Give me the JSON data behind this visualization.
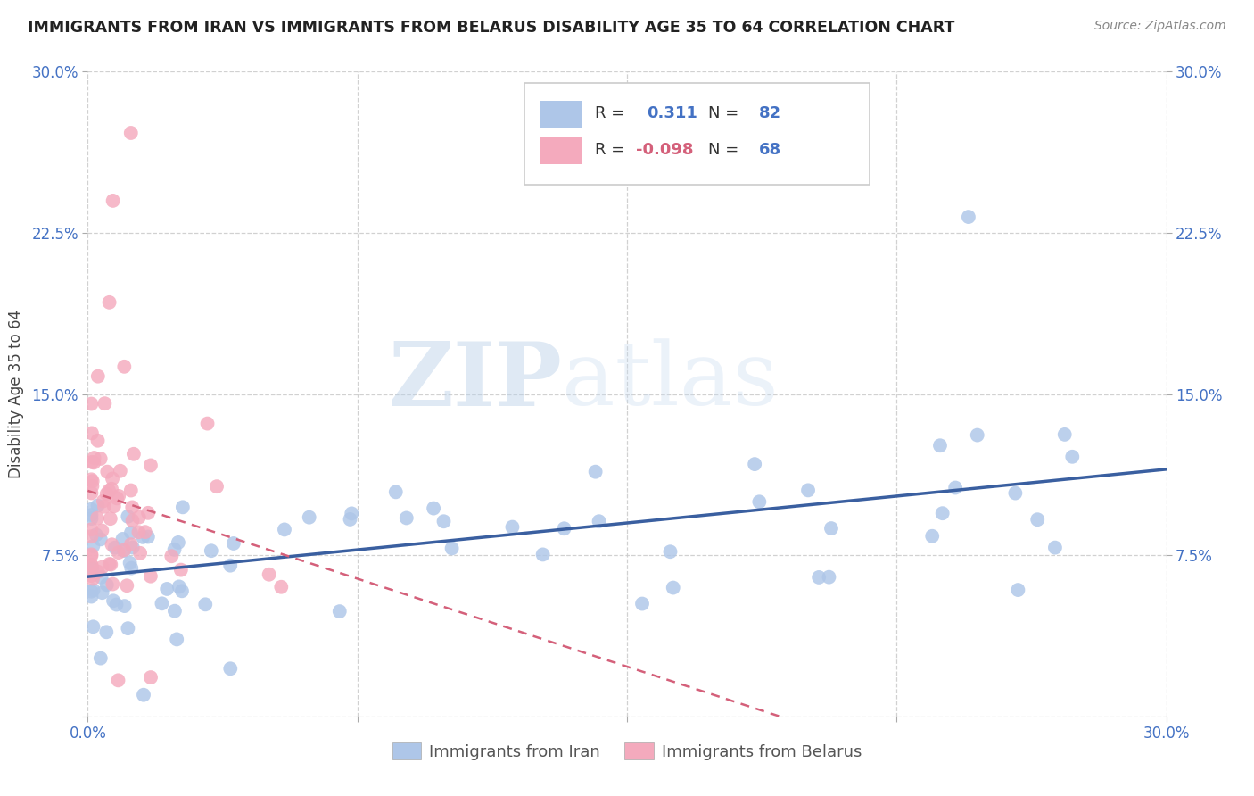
{
  "title": "IMMIGRANTS FROM IRAN VS IMMIGRANTS FROM BELARUS DISABILITY AGE 35 TO 64 CORRELATION CHART",
  "source": "Source: ZipAtlas.com",
  "ylabel": "Disability Age 35 to 64",
  "xlim": [
    0.0,
    0.3
  ],
  "ylim": [
    0.0,
    0.3
  ],
  "iran_color": "#aec6e8",
  "iran_color_line": "#3a5fa0",
  "belarus_color": "#f4aabd",
  "belarus_color_line": "#d4607a",
  "iran_R": 0.311,
  "iran_N": 82,
  "belarus_R": -0.098,
  "belarus_N": 68,
  "watermark_zip": "ZIP",
  "watermark_atlas": "atlas",
  "background_color": "#ffffff",
  "grid_color": "#cccccc",
  "title_color": "#222222",
  "tick_color": "#4472c4",
  "legend_label_iran": "Immigrants from Iran",
  "legend_label_belarus": "Immigrants from Belarus"
}
